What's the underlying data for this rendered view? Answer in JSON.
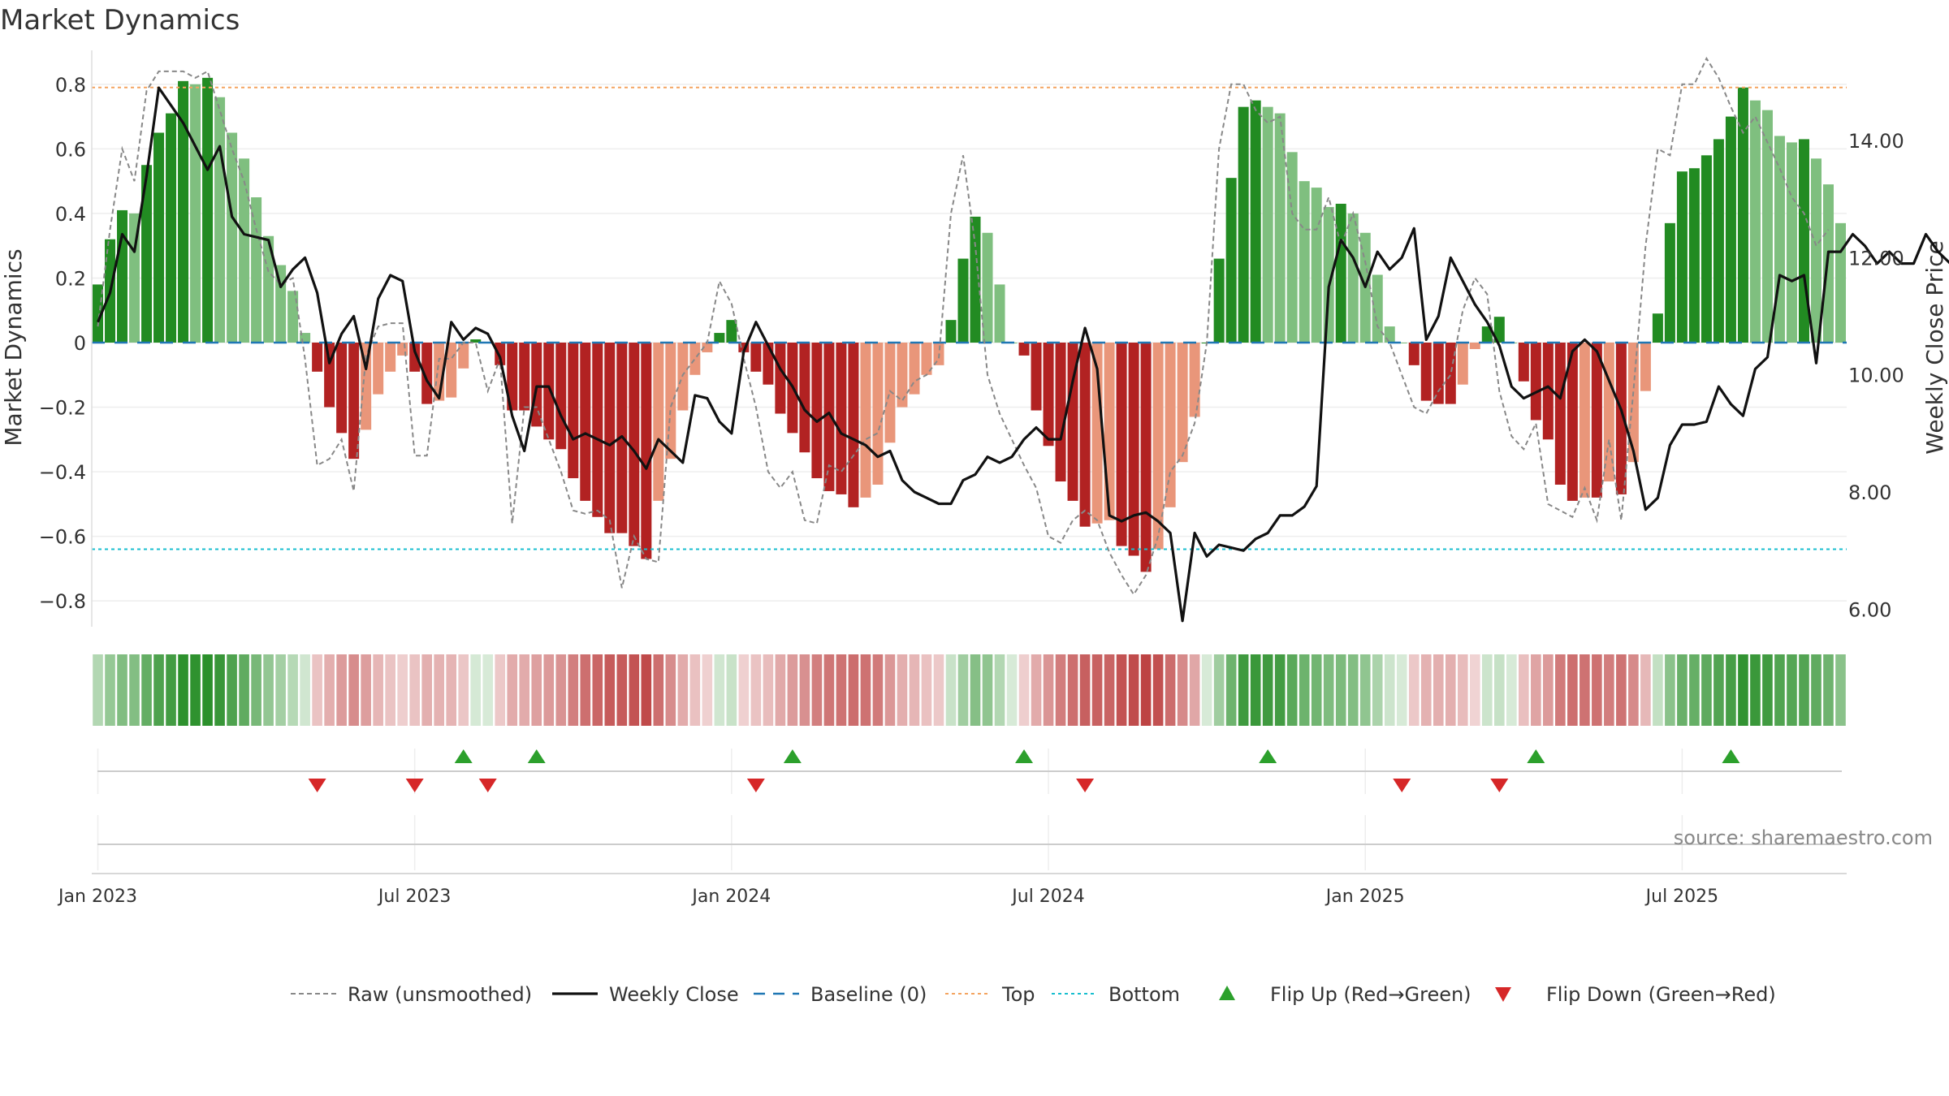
{
  "chart_data": {
    "type": "bar",
    "title": "Market Dynamics",
    "ylabel": "Market Dynamics",
    "y2label": "Weekly Close Price",
    "source": "source: sharemaestro.com",
    "ylim": [
      -0.88,
      0.88
    ],
    "y2lim": [
      5.7,
      15.4
    ],
    "yticks": [
      0.8,
      0.6,
      0.4,
      0.2,
      0,
      -0.2,
      -0.4,
      -0.6,
      -0.8
    ],
    "ytick_labels": [
      "0.8",
      "0.6",
      "0.4",
      "0.2",
      "0",
      "−0.2",
      "−0.4",
      "−0.6",
      "−0.8"
    ],
    "y2ticks": [
      14,
      12,
      10,
      8,
      6
    ],
    "y2tick_labels": [
      "14.00",
      "12.00",
      "10.00",
      "8.00",
      "6.00"
    ],
    "xticks": [
      {
        "label": "Jan 2023",
        "week": 1
      },
      {
        "label": "Jul 2023",
        "week": 27
      },
      {
        "label": "Jan 2024",
        "week": 53
      },
      {
        "label": "Jul 2024",
        "week": 79
      },
      {
        "label": "Jan 2025",
        "week": 105
      },
      {
        "label": "Jul 2025",
        "week": 131
      }
    ],
    "top_level": 0.79,
    "bottom_level": -0.64,
    "baseline": 0,
    "colors": {
      "strong_green": "#228b22",
      "light_green": "#7fbf7f",
      "strong_red": "#b22222",
      "light_red": "#e9967a",
      "weekly_close": "#111111",
      "raw": "#888888",
      "baseline": "#1f77b4",
      "top": "#f4a460",
      "bottom": "#17becf",
      "flip_up": "#2ca02c",
      "flip_down": "#d62728"
    },
    "series": [
      {
        "name": "Market Dynamics",
        "values": [
          0.18,
          0.32,
          0.41,
          0.4,
          0.55,
          0.65,
          0.71,
          0.81,
          0.8,
          0.82,
          0.76,
          0.65,
          0.57,
          0.45,
          0.33,
          0.24,
          0.16,
          0.03,
          -0.09,
          -0.2,
          -0.28,
          -0.36,
          -0.27,
          -0.16,
          -0.09,
          -0.04,
          -0.09,
          -0.19,
          -0.18,
          -0.17,
          -0.08,
          0.01,
          0.0,
          -0.07,
          -0.21,
          -0.21,
          -0.26,
          -0.3,
          -0.33,
          -0.42,
          -0.49,
          -0.54,
          -0.59,
          -0.59,
          -0.63,
          -0.67,
          -0.49,
          -0.36,
          -0.21,
          -0.1,
          -0.03,
          0.03,
          0.07,
          -0.03,
          -0.09,
          -0.13,
          -0.22,
          -0.28,
          -0.34,
          -0.42,
          -0.46,
          -0.47,
          -0.51,
          -0.48,
          -0.44,
          -0.31,
          -0.2,
          -0.16,
          -0.1,
          -0.07,
          0.07,
          0.26,
          0.39,
          0.34,
          0.18,
          0.0,
          -0.04,
          -0.21,
          -0.32,
          -0.43,
          -0.49,
          -0.57,
          -0.56,
          -0.55,
          -0.63,
          -0.66,
          -0.71,
          -0.64,
          -0.51,
          -0.37,
          -0.23,
          0.0,
          0.26,
          0.51,
          0.73,
          0.75,
          0.73,
          0.71,
          0.59,
          0.5,
          0.48,
          0.42,
          0.43,
          0.4,
          0.34,
          0.21,
          0.05,
          0.0,
          -0.07,
          -0.18,
          -0.19,
          -0.19,
          -0.13,
          -0.02,
          0.05,
          0.08,
          0.0,
          -0.12,
          -0.24,
          -0.3,
          -0.44,
          -0.49,
          -0.48,
          -0.48,
          -0.43,
          -0.47,
          -0.37,
          -0.15,
          0.09,
          0.37,
          0.53,
          0.54,
          0.58,
          0.63,
          0.7,
          0.79,
          0.75,
          0.72,
          0.64,
          0.62,
          0.63,
          0.57,
          0.49,
          0.37
        ]
      },
      {
        "name": "Weekly Close",
        "values": [
          10.9,
          11.4,
          12.4,
          12.1,
          13.4,
          14.9,
          14.6,
          14.3,
          13.9,
          13.5,
          13.9,
          12.7,
          12.4,
          12.35,
          12.3,
          11.5,
          11.8,
          12.0,
          11.4,
          10.2,
          10.7,
          11.0,
          10.1,
          11.3,
          11.7,
          11.6,
          10.4,
          9.9,
          9.6,
          10.9,
          10.6,
          10.8,
          10.7,
          10.3,
          9.3,
          8.7,
          9.8,
          9.8,
          9.3,
          8.9,
          9.0,
          8.9,
          8.8,
          8.95,
          8.7,
          8.4,
          8.9,
          8.7,
          8.5,
          9.65,
          9.6,
          9.2,
          9.0,
          10.4,
          10.9,
          10.5,
          10.1,
          9.8,
          9.4,
          9.2,
          9.35,
          9.0,
          8.9,
          8.8,
          8.6,
          8.7,
          8.2,
          8.0,
          7.9,
          7.8,
          7.8,
          8.2,
          8.3,
          8.6,
          8.5,
          8.6,
          8.9,
          9.1,
          8.9,
          8.9,
          9.9,
          10.8,
          10.1,
          7.6,
          7.5,
          7.6,
          7.65,
          7.5,
          7.3,
          5.8,
          7.3,
          6.9,
          7.1,
          7.05,
          7.0,
          7.2,
          7.3,
          7.6,
          7.6,
          7.75,
          8.1,
          11.5,
          12.3,
          12.0,
          11.5,
          12.1,
          11.8,
          12.0,
          12.5,
          10.6,
          11.0,
          12.0,
          11.6,
          11.2,
          10.9,
          10.5,
          9.8,
          9.6,
          9.7,
          9.8,
          9.6,
          10.4,
          10.6,
          10.4,
          9.9,
          9.4,
          8.7,
          7.7,
          7.9,
          8.8,
          9.15,
          9.15,
          9.2,
          9.8,
          9.5,
          9.3,
          10.1,
          10.3,
          11.7,
          11.6,
          11.7,
          10.2,
          12.1,
          12.1,
          12.4,
          12.2,
          11.9,
          12.1,
          11.9,
          11.9,
          12.4,
          12.1,
          11.9,
          11.9,
          11.8
        ]
      },
      {
        "name": "Raw (unsmoothed)",
        "values": [
          0.05,
          0.35,
          0.6,
          0.5,
          0.78,
          0.84,
          0.84,
          0.84,
          0.82,
          0.84,
          0.72,
          0.6,
          0.5,
          0.35,
          0.22,
          0.18,
          0.2,
          -0.05,
          -0.38,
          -0.36,
          -0.3,
          -0.46,
          -0.04,
          0.05,
          0.06,
          0.06,
          -0.35,
          -0.35,
          -0.05,
          -0.05,
          0.0,
          0.0,
          -0.15,
          -0.05,
          -0.56,
          -0.2,
          -0.2,
          -0.3,
          -0.4,
          -0.52,
          -0.53,
          -0.52,
          -0.55,
          -0.76,
          -0.6,
          -0.67,
          -0.68,
          -0.2,
          -0.1,
          -0.05,
          0.0,
          0.19,
          0.12,
          -0.05,
          -0.2,
          -0.4,
          -0.45,
          -0.4,
          -0.55,
          -0.56,
          -0.38,
          -0.4,
          -0.35,
          -0.3,
          -0.28,
          -0.15,
          -0.18,
          -0.12,
          -0.1,
          -0.05,
          0.4,
          0.58,
          0.3,
          -0.1,
          -0.22,
          -0.3,
          -0.38,
          -0.45,
          -0.6,
          -0.62,
          -0.55,
          -0.52,
          -0.55,
          -0.65,
          -0.72,
          -0.78,
          -0.72,
          -0.6,
          -0.4,
          -0.35,
          -0.25,
          0.0,
          0.6,
          0.8,
          0.8,
          0.72,
          0.68,
          0.7,
          0.4,
          0.35,
          0.35,
          0.45,
          0.3,
          0.4,
          0.25,
          0.05,
          0.0,
          -0.1,
          -0.2,
          -0.22,
          -0.15,
          -0.1,
          0.1,
          0.2,
          0.15,
          -0.15,
          -0.29,
          -0.33,
          -0.25,
          -0.5,
          -0.52,
          -0.54,
          -0.45,
          -0.55,
          -0.3,
          -0.55,
          -0.15,
          0.3,
          0.6,
          0.58,
          0.8,
          0.8,
          0.88,
          0.82,
          0.73,
          0.65,
          0.7,
          0.62,
          0.54,
          0.45,
          0.4,
          0.3,
          0.35
        ]
      },
      {
        "name": "Baseline (0)"
      },
      {
        "name": "Top"
      },
      {
        "name": "Bottom"
      },
      {
        "name": "Flip Up (Red→Green)",
        "weeks": [
          31,
          37,
          58,
          77,
          97,
          119,
          135
        ]
      },
      {
        "name": "Flip Down (Green→Red)",
        "weeks": [
          19,
          27,
          33,
          55,
          82,
          108,
          116
        ]
      }
    ],
    "legend": {
      "position": "bottom-center",
      "items": [
        {
          "label": "Raw (unsmoothed)",
          "kind": "line-dashed-gray"
        },
        {
          "label": "Weekly Close",
          "kind": "line-black"
        },
        {
          "label": "Baseline (0)",
          "kind": "line-dashed-blue"
        },
        {
          "label": "Top",
          "kind": "line-dotted-orange"
        },
        {
          "label": "Bottom",
          "kind": "line-dotted-cyan"
        },
        {
          "label": "Flip Up (Red→Green)",
          "kind": "marker-up"
        },
        {
          "label": "Flip Down (Green→Red)",
          "kind": "marker-down"
        }
      ]
    }
  }
}
